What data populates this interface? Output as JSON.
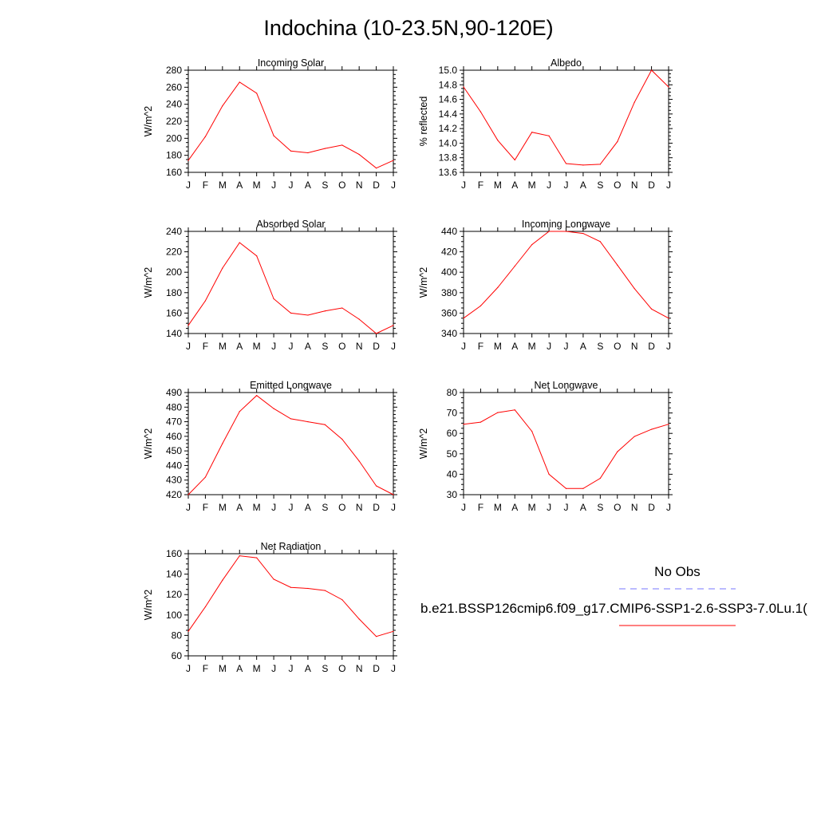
{
  "title": "Indochina (10-23.5N,90-120E)",
  "colors": {
    "model_line": "#ff0000",
    "obs_line": "#7777ff",
    "axis": "#000000"
  },
  "legend": {
    "obs_label": "No Obs",
    "model_label": "b.e21.BSSP126cmip6.f09_g17.CMIP6-SSP1-2.6-SSP3-7.0Lu.1("
  },
  "months": [
    "J",
    "F",
    "M",
    "A",
    "M",
    "J",
    "J",
    "A",
    "S",
    "O",
    "N",
    "D",
    "J"
  ],
  "chart_data": [
    {
      "type": "line",
      "title": "Incoming Solar",
      "ylabel": "W/m^2",
      "ylim": [
        160,
        280
      ],
      "yticks": [
        160,
        180,
        200,
        220,
        240,
        260,
        280
      ],
      "x": [
        "J",
        "F",
        "M",
        "A",
        "M",
        "J",
        "J",
        "A",
        "S",
        "O",
        "N",
        "D",
        "J"
      ],
      "series": [
        {
          "values": [
            174,
            202,
            238,
            266,
            253,
            203,
            185,
            183,
            188,
            192,
            181,
            165,
            174
          ]
        }
      ]
    },
    {
      "type": "line",
      "title": "Albedo",
      "ylabel": "% reflected",
      "ylim": [
        13.6,
        15.0
      ],
      "yticks": [
        "13.6",
        "13.8",
        "14.0",
        "14.2",
        "14.4",
        "14.6",
        "14.8",
        "15.0"
      ],
      "x": [
        "J",
        "F",
        "M",
        "A",
        "M",
        "J",
        "J",
        "A",
        "S",
        "O",
        "N",
        "D",
        "J"
      ],
      "series": [
        {
          "values": [
            14.77,
            14.43,
            14.04,
            13.77,
            14.15,
            14.1,
            13.72,
            13.7,
            13.71,
            14.02,
            14.56,
            15.0,
            14.77
          ]
        }
      ]
    },
    {
      "type": "line",
      "title": "Absorbed Solar",
      "ylabel": "W/m^2",
      "ylim": [
        140,
        240
      ],
      "yticks": [
        140,
        160,
        180,
        200,
        220,
        240
      ],
      "x": [
        "J",
        "F",
        "M",
        "A",
        "M",
        "J",
        "J",
        "A",
        "S",
        "O",
        "N",
        "D",
        "J"
      ],
      "series": [
        {
          "values": [
            148,
            172,
            204,
            229,
            216,
            174,
            160,
            158,
            162,
            165,
            154,
            140,
            148
          ]
        }
      ]
    },
    {
      "type": "line",
      "title": "Incoming Longwave",
      "ylabel": "W/m^2",
      "ylim": [
        340,
        440
      ],
      "yticks": [
        340,
        360,
        380,
        400,
        420,
        440
      ],
      "x": [
        "J",
        "F",
        "M",
        "A",
        "M",
        "J",
        "J",
        "A",
        "S",
        "O",
        "N",
        "D",
        "J"
      ],
      "series": [
        {
          "values": [
            355,
            367,
            385,
            406,
            427,
            440,
            440,
            438,
            430,
            407,
            384,
            364,
            355
          ]
        }
      ]
    },
    {
      "type": "line",
      "title": "Emitted Longwave",
      "ylabel": "W/m^2",
      "ylim": [
        420,
        490
      ],
      "yticks": [
        420,
        430,
        440,
        450,
        460,
        470,
        480,
        490
      ],
      "x": [
        "J",
        "F",
        "M",
        "A",
        "M",
        "J",
        "J",
        "A",
        "S",
        "O",
        "N",
        "D",
        "J"
      ],
      "series": [
        {
          "values": [
            420,
            432,
            455,
            477,
            488,
            479,
            472,
            470,
            468,
            458,
            443,
            426,
            420
          ]
        }
      ]
    },
    {
      "type": "line",
      "title": "Net Longwave",
      "ylabel": "W/m^2",
      "ylim": [
        30,
        80
      ],
      "yticks": [
        30,
        40,
        50,
        60,
        70,
        80
      ],
      "x": [
        "J",
        "F",
        "M",
        "A",
        "M",
        "J",
        "J",
        "A",
        "S",
        "O",
        "N",
        "D",
        "J"
      ],
      "series": [
        {
          "values": [
            64.5,
            65.5,
            70.2,
            71.5,
            61,
            40,
            33,
            33,
            38,
            51,
            58.5,
            62,
            64.5
          ]
        }
      ]
    },
    {
      "type": "line",
      "title": "Net Radiation",
      "ylabel": "W/m^2",
      "ylim": [
        60,
        160
      ],
      "yticks": [
        60,
        80,
        100,
        120,
        140,
        160
      ],
      "x": [
        "J",
        "F",
        "M",
        "A",
        "M",
        "J",
        "J",
        "A",
        "S",
        "O",
        "N",
        "D",
        "J"
      ],
      "series": [
        {
          "values": [
            84,
            108,
            134,
            158,
            156,
            135,
            127,
            126,
            124,
            115,
            96,
            79,
            84
          ]
        }
      ]
    }
  ]
}
